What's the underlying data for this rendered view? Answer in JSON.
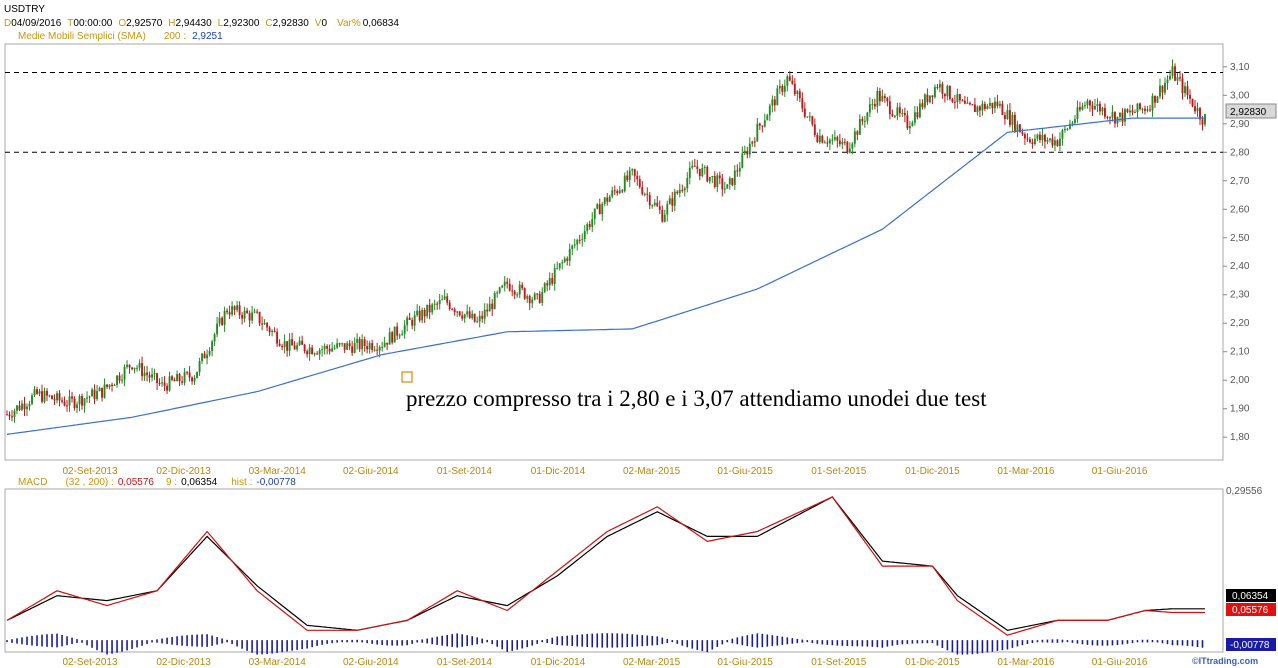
{
  "header": {
    "symbol": "USDTRY",
    "date_label": "D",
    "date": "04/09/2016",
    "time_label": "T",
    "time": "00:00:00",
    "open_label": "O",
    "open": "2,92570",
    "high_label": "H",
    "high": "2,94430",
    "low_label": "L",
    "low": "2,92300",
    "close_label": "C",
    "close": "2,92830",
    "volume_label": "V",
    "volume": "0",
    "var_label": "Var%",
    "var": "0,06834",
    "sma_label": "Medie Mobili Semplici (SMA)",
    "sma_period": "200 :",
    "sma_value": "2,9251"
  },
  "macd_header": {
    "label": "MACD",
    "params": "(32 , 200) :",
    "macd_value": "0,05576",
    "signal_period": "9 :",
    "signal_value": "0,06354",
    "hist_label": "hist :",
    "hist_value": "-0,00778"
  },
  "annotation": "prezzo compresso tra i 2,80 e i 3,07 attendiamo unodei due test",
  "watermark": "©ITtrading.com",
  "price_badge": "2,92830",
  "macd_badges": {
    "signal": "0,06354",
    "macd": "0,05576",
    "hist": "-0,00778"
  },
  "macd_axis_top": "0,29556",
  "colors": {
    "up_candle": "#228b22",
    "down_candle": "#c0181a",
    "sma": "#3a6fd0",
    "macd_line": "#d01010",
    "signal_line": "#000000",
    "histogram": "#1a1aa8",
    "tick_text": "#b8860b",
    "header_orange": "#c8950a",
    "header_blue": "#1a3fbf"
  },
  "chart_data": [
    {
      "type": "candlestick",
      "title": "USDTRY",
      "x_tick_labels": [
        "02-Set-2013",
        "02-Dic-2013",
        "03-Mar-2014",
        "02-Giu-2014",
        "01-Set-2014",
        "01-Dic-2014",
        "02-Mar-2015",
        "01-Giu-2015",
        "01-Set-2015",
        "01-Dic-2015",
        "01-Mar-2016",
        "01-Giu-2016"
      ],
      "y_tick_labels": [
        "1,80",
        "1,90",
        "2,00",
        "2,10",
        "2,20",
        "2,30",
        "2,40",
        "2,50",
        "2,60",
        "2,70",
        "2,80",
        "2,90",
        "3,00",
        "3,10"
      ],
      "ylim": [
        1.72,
        3.18
      ],
      "price_path": [
        [
          0,
          1.88
        ],
        [
          12,
          1.95
        ],
        [
          25,
          1.92
        ],
        [
          38,
          1.96
        ],
        [
          50,
          2.06
        ],
        [
          62,
          1.98
        ],
        [
          75,
          2.02
        ],
        [
          88,
          2.25
        ],
        [
          100,
          2.22
        ],
        [
          112,
          2.12
        ],
        [
          125,
          2.11
        ],
        [
          138,
          2.12
        ],
        [
          150,
          2.13
        ],
        [
          162,
          2.21
        ],
        [
          175,
          2.28
        ],
        [
          188,
          2.2
        ],
        [
          200,
          2.34
        ],
        [
          212,
          2.28
        ],
        [
          225,
          2.45
        ],
        [
          238,
          2.62
        ],
        [
          250,
          2.72
        ],
        [
          262,
          2.58
        ],
        [
          275,
          2.75
        ],
        [
          288,
          2.67
        ],
        [
          300,
          2.88
        ],
        [
          312,
          3.06
        ],
        [
          324,
          2.86
        ],
        [
          336,
          2.82
        ],
        [
          348,
          3.0
        ],
        [
          360,
          2.9
        ],
        [
          372,
          3.04
        ],
        [
          384,
          2.95
        ],
        [
          396,
          2.97
        ],
        [
          408,
          2.85
        ],
        [
          420,
          2.84
        ],
        [
          432,
          2.98
        ],
        [
          444,
          2.92
        ],
        [
          456,
          2.96
        ],
        [
          466,
          3.08
        ],
        [
          478,
          2.92
        ]
      ],
      "sma_path": [
        [
          0,
          1.81
        ],
        [
          50,
          1.87
        ],
        [
          100,
          1.96
        ],
        [
          150,
          2.09
        ],
        [
          200,
          2.17
        ],
        [
          250,
          2.18
        ],
        [
          300,
          2.32
        ],
        [
          350,
          2.53
        ],
        [
          400,
          2.87
        ],
        [
          450,
          2.92
        ]
      ],
      "dashed_levels": [
        3.08,
        2.8
      ],
      "legend_series": [
        "Medie Mobili Semplici (SMA)"
      ]
    },
    {
      "type": "line",
      "title": "MACD",
      "series": [
        {
          "name": "MACD",
          "path": [
            [
              0,
              0.04
            ],
            [
              20,
              0.1
            ],
            [
              40,
              0.07
            ],
            [
              60,
              0.1
            ],
            [
              80,
              0.22
            ],
            [
              100,
              0.1
            ],
            [
              120,
              0.02
            ],
            [
              140,
              0.02
            ],
            [
              160,
              0.04
            ],
            [
              180,
              0.1
            ],
            [
              200,
              0.06
            ],
            [
              220,
              0.14
            ],
            [
              240,
              0.22
            ],
            [
              260,
              0.27
            ],
            [
              280,
              0.2
            ],
            [
              300,
              0.22
            ],
            [
              330,
              0.29
            ],
            [
              350,
              0.15
            ],
            [
              370,
              0.15
            ],
            [
              380,
              0.08
            ],
            [
              400,
              0.01
            ],
            [
              420,
              0.04
            ],
            [
              440,
              0.04
            ],
            [
              455,
              0.06
            ],
            [
              466,
              0.056
            ]
          ]
        },
        {
          "name": "Signal",
          "path": [
            [
              0,
              0.04
            ],
            [
              20,
              0.09
            ],
            [
              40,
              0.08
            ],
            [
              60,
              0.1
            ],
            [
              80,
              0.21
            ],
            [
              100,
              0.11
            ],
            [
              120,
              0.03
            ],
            [
              140,
              0.02
            ],
            [
              160,
              0.04
            ],
            [
              180,
              0.09
            ],
            [
              200,
              0.07
            ],
            [
              220,
              0.13
            ],
            [
              240,
              0.21
            ],
            [
              260,
              0.26
            ],
            [
              280,
              0.21
            ],
            [
              300,
              0.21
            ],
            [
              330,
              0.29
            ],
            [
              350,
              0.16
            ],
            [
              370,
              0.15
            ],
            [
              380,
              0.09
            ],
            [
              400,
              0.02
            ],
            [
              420,
              0.04
            ],
            [
              440,
              0.04
            ],
            [
              455,
              0.06
            ],
            [
              466,
              0.0635
            ]
          ]
        }
      ],
      "ylim": [
        -0.02,
        0.3
      ]
    }
  ]
}
